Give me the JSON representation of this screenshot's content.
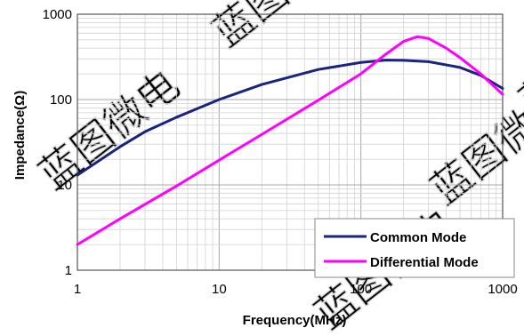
{
  "chart_data": {
    "type": "line",
    "xlabel": "Frequency(MHz)",
    "ylabel": "Impedance(Ω)",
    "x_scale": "log",
    "y_scale": "log",
    "xlim": [
      1,
      1000
    ],
    "ylim": [
      1,
      1000
    ],
    "x_ticks": [
      "1",
      "10",
      "100",
      "1000"
    ],
    "y_ticks": [
      "1",
      "10",
      "100",
      "1000"
    ],
    "grid": true,
    "legend_position": "bottom-right",
    "series": [
      {
        "name": "Common Mode",
        "color": "#1a237e",
        "points": [
          [
            1,
            13
          ],
          [
            2,
            28
          ],
          [
            3,
            42
          ],
          [
            5,
            62
          ],
          [
            10,
            100
          ],
          [
            20,
            150
          ],
          [
            50,
            225
          ],
          [
            100,
            272
          ],
          [
            150,
            290
          ],
          [
            200,
            288
          ],
          [
            300,
            278
          ],
          [
            500,
            238
          ],
          [
            700,
            192
          ],
          [
            1000,
            135
          ]
        ]
      },
      {
        "name": "Differential Mode",
        "color": "#ff00ff",
        "points": [
          [
            1,
            2
          ],
          [
            2,
            4
          ],
          [
            5,
            9.7
          ],
          [
            10,
            19.5
          ],
          [
            20,
            39
          ],
          [
            50,
            98
          ],
          [
            100,
            200
          ],
          [
            150,
            340
          ],
          [
            200,
            480
          ],
          [
            250,
            545
          ],
          [
            300,
            520
          ],
          [
            400,
            400
          ],
          [
            500,
            310
          ],
          [
            700,
            200
          ],
          [
            1000,
            115
          ]
        ]
      }
    ]
  },
  "watermark": "蓝图微电"
}
